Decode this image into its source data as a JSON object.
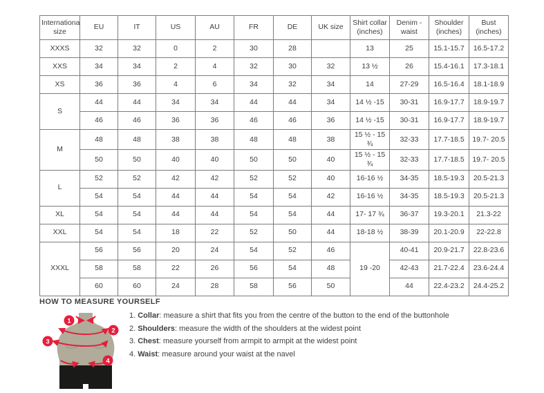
{
  "table": {
    "headers": [
      "International size",
      "EU",
      "IT",
      "US",
      "AU",
      "FR",
      "DE",
      "UK size",
      "Shirt collar (inches)",
      "Denim - waist",
      "Shoulder (inches)",
      "Bust (inches)"
    ],
    "rows": [
      {
        "cells": [
          {
            "t": "XXXS"
          },
          {
            "t": "32"
          },
          {
            "t": "32"
          },
          {
            "t": "0"
          },
          {
            "t": "2"
          },
          {
            "t": "30"
          },
          {
            "t": "28"
          },
          {
            "t": ""
          },
          {
            "t": "13"
          },
          {
            "t": "25"
          },
          {
            "t": "15.1-15.7"
          },
          {
            "t": "16.5-17.2"
          }
        ]
      },
      {
        "cells": [
          {
            "t": "XXS"
          },
          {
            "t": "34"
          },
          {
            "t": "34"
          },
          {
            "t": "2"
          },
          {
            "t": "4"
          },
          {
            "t": "32"
          },
          {
            "t": "30"
          },
          {
            "t": "32"
          },
          {
            "t": "13 ½"
          },
          {
            "t": "26"
          },
          {
            "t": "15.4-16.1"
          },
          {
            "t": "17.3-18.1"
          }
        ]
      },
      {
        "cells": [
          {
            "t": "XS"
          },
          {
            "t": "36"
          },
          {
            "t": "36"
          },
          {
            "t": "4"
          },
          {
            "t": "6"
          },
          {
            "t": "34"
          },
          {
            "t": "32"
          },
          {
            "t": "34"
          },
          {
            "t": "14"
          },
          {
            "t": "27-29"
          },
          {
            "t": "16.5-16.4"
          },
          {
            "t": "18.1-18.9"
          }
        ]
      },
      {
        "cells": [
          {
            "t": "S",
            "rs": 2
          },
          {
            "t": "44"
          },
          {
            "t": "44"
          },
          {
            "t": "34"
          },
          {
            "t": "34"
          },
          {
            "t": "44"
          },
          {
            "t": "44"
          },
          {
            "t": "34"
          },
          {
            "t": "14 ½ -15"
          },
          {
            "t": "30-31"
          },
          {
            "t": "16.9-17.7"
          },
          {
            "t": "18.9-19.7"
          }
        ]
      },
      {
        "cells": [
          {
            "t": "46"
          },
          {
            "t": "46"
          },
          {
            "t": "36"
          },
          {
            "t": "36"
          },
          {
            "t": "46"
          },
          {
            "t": "46"
          },
          {
            "t": "36"
          },
          {
            "t": "14 ½ -15"
          },
          {
            "t": "30-31"
          },
          {
            "t": "16.9-17.7"
          },
          {
            "t": "18.9-19.7"
          }
        ]
      },
      {
        "cells": [
          {
            "t": "M",
            "rs": 2
          },
          {
            "t": "48"
          },
          {
            "t": "48"
          },
          {
            "t": "38"
          },
          {
            "t": "38"
          },
          {
            "t": "48"
          },
          {
            "t": "48"
          },
          {
            "t": "38"
          },
          {
            "t": "15 ½ - 15 ¾"
          },
          {
            "t": "32-33"
          },
          {
            "t": "17.7-18.5"
          },
          {
            "t": "19.7- 20.5"
          }
        ]
      },
      {
        "cells": [
          {
            "t": "50"
          },
          {
            "t": "50"
          },
          {
            "t": "40"
          },
          {
            "t": "40"
          },
          {
            "t": "50"
          },
          {
            "t": "50"
          },
          {
            "t": "40"
          },
          {
            "t": "15 ½ - 15 ¾"
          },
          {
            "t": "32-33"
          },
          {
            "t": "17.7-18.5"
          },
          {
            "t": "19.7- 20.5"
          }
        ]
      },
      {
        "cells": [
          {
            "t": "L",
            "rs": 2
          },
          {
            "t": "52"
          },
          {
            "t": "52"
          },
          {
            "t": "42"
          },
          {
            "t": "42"
          },
          {
            "t": "52"
          },
          {
            "t": "52"
          },
          {
            "t": "40"
          },
          {
            "t": "16-16 ½"
          },
          {
            "t": "34-35"
          },
          {
            "t": "18.5-19.3"
          },
          {
            "t": "20.5-21.3"
          }
        ]
      },
      {
        "cells": [
          {
            "t": "54"
          },
          {
            "t": "54"
          },
          {
            "t": "44"
          },
          {
            "t": "44"
          },
          {
            "t": "54"
          },
          {
            "t": "54"
          },
          {
            "t": "42"
          },
          {
            "t": "16-16 ½"
          },
          {
            "t": "34-35"
          },
          {
            "t": "18.5-19.3"
          },
          {
            "t": "20.5-21.3"
          }
        ]
      },
      {
        "cells": [
          {
            "t": "XL"
          },
          {
            "t": "54"
          },
          {
            "t": "54"
          },
          {
            "t": "44"
          },
          {
            "t": "44"
          },
          {
            "t": "54"
          },
          {
            "t": "54"
          },
          {
            "t": "44"
          },
          {
            "t": "17- 17 ¾"
          },
          {
            "t": "36-37"
          },
          {
            "t": "19.3-20.1"
          },
          {
            "t": "21.3-22"
          }
        ]
      },
      {
        "cells": [
          {
            "t": "XXL"
          },
          {
            "t": "54"
          },
          {
            "t": "54"
          },
          {
            "t": "18"
          },
          {
            "t": "22"
          },
          {
            "t": "52"
          },
          {
            "t": "50"
          },
          {
            "t": "44"
          },
          {
            "t": "18-18 ½"
          },
          {
            "t": "38-39"
          },
          {
            "t": "20.1-20.9"
          },
          {
            "t": "22-22.8"
          }
        ]
      },
      {
        "cells": [
          {
            "t": "XXXL",
            "rs": 3
          },
          {
            "t": "56"
          },
          {
            "t": "56"
          },
          {
            "t": "20"
          },
          {
            "t": "24"
          },
          {
            "t": "54"
          },
          {
            "t": "52"
          },
          {
            "t": "46"
          },
          {
            "t": "19 -20",
            "rs": 3
          },
          {
            "t": "40-41"
          },
          {
            "t": "20.9-21.7"
          },
          {
            "t": "22.8-23.6"
          }
        ]
      },
      {
        "cells": [
          {
            "t": "58"
          },
          {
            "t": "58"
          },
          {
            "t": "22"
          },
          {
            "t": "26"
          },
          {
            "t": "56"
          },
          {
            "t": "54"
          },
          {
            "t": "48"
          },
          {
            "t": "42-43"
          },
          {
            "t": "21.7-22.4"
          },
          {
            "t": "23.6-24.4"
          }
        ]
      },
      {
        "cells": [
          {
            "t": "60"
          },
          {
            "t": "60"
          },
          {
            "t": "24"
          },
          {
            "t": "28"
          },
          {
            "t": "58"
          },
          {
            "t": "56"
          },
          {
            "t": "50"
          },
          {
            "t": "44"
          },
          {
            "t": "22.4-23.2"
          },
          {
            "t": "24.4-25.2"
          }
        ]
      }
    ]
  },
  "measure": {
    "heading": "HOW TO MEASURE YOURSELF",
    "items": [
      {
        "num": "1.",
        "label": "Collar",
        "text": ": measure a shirt that fits you from the centre of the button to the end of the buttonhole"
      },
      {
        "num": "2.",
        "label": "Shoulders",
        "text": ": measure the width of the shoulders at the widest point"
      },
      {
        "num": "3.",
        "label": "Chest",
        "text": ": measure yourself from armpit to armpit at the widest point"
      },
      {
        "num": "4.",
        "label": "Waist",
        "text": ": measure around your waist at the navel"
      }
    ],
    "badges": [
      "1",
      "2",
      "3",
      "4"
    ]
  },
  "colors": {
    "accent_red": "#e61e3c",
    "torso": "#b0ac99",
    "shorts": "#1a1a18",
    "table_border": "#7b7b7b",
    "text": "#3d3d3d"
  }
}
